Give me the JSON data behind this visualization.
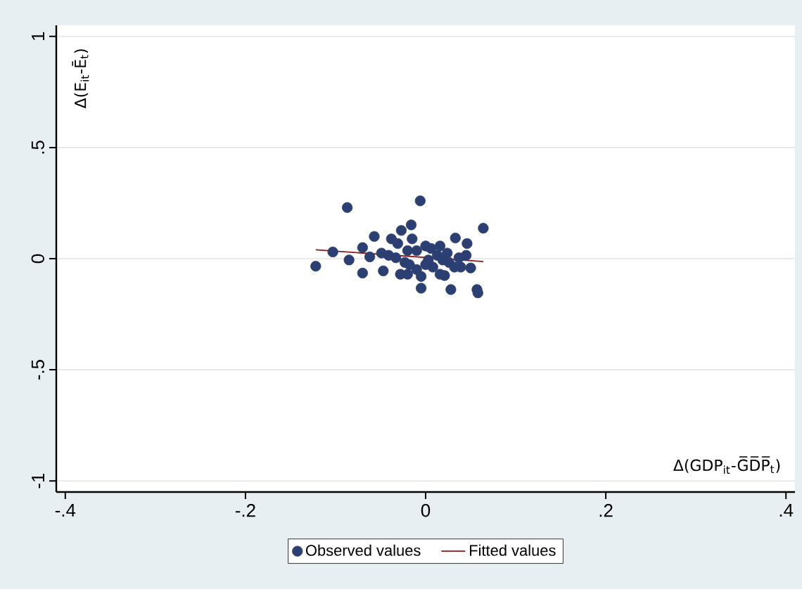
{
  "chart_data": {
    "type": "scatter",
    "xlabel": "Δ(GDP$_{it}$-G̅D̅P̅$_{t}$)",
    "ylabel": "Δ(E$_{it}$-Ē$_{t}$)",
    "xlim": [
      -0.41,
      0.41
    ],
    "ylim": [
      -1.05,
      1.05
    ],
    "xticks": [
      {
        "value": -0.4,
        "label": "-.4"
      },
      {
        "value": -0.2,
        "label": "-.2"
      },
      0,
      {
        "value": 0.2,
        "label": ".2"
      },
      {
        "value": 0.4,
        "label": ".4"
      }
    ],
    "yticks": [
      {
        "value": -1,
        "label": "-1"
      },
      {
        "value": -0.5,
        "label": "-.5"
      },
      0,
      {
        "value": 0.5,
        "label": ".5"
      },
      1
    ],
    "grid": "y",
    "legend": "bottom",
    "series": [
      {
        "name": "Observed values",
        "marker": "circle",
        "color": "#2b3f72",
        "x": [
          -0.087,
          -0.006,
          0.064,
          -0.122,
          -0.103,
          -0.085,
          -0.07,
          -0.07,
          -0.057,
          -0.047,
          -0.038,
          -0.027,
          -0.016,
          -0.005,
          0.028,
          0.057,
          0.058,
          0.033,
          0.046,
          0.05,
          0.021,
          0.016,
          0.0,
          -0.015,
          -0.062,
          -0.049,
          -0.033,
          -0.023,
          -0.028,
          -0.02,
          -0.01,
          -0.005,
          0.003,
          0.008,
          0.013,
          0.024,
          0.026,
          0.037,
          0.039,
          0.045,
          -0.02,
          -0.01,
          -0.031,
          0.006,
          0.016,
          -0.041,
          -0.018,
          0.0,
          0.019,
          0.032
        ],
        "values": [
          0.23,
          0.26,
          0.137,
          -0.034,
          0.03,
          -0.006,
          0.05,
          -0.065,
          0.1,
          -0.055,
          0.089,
          0.127,
          0.152,
          -0.133,
          -0.139,
          -0.139,
          -0.154,
          0.093,
          0.068,
          -0.042,
          -0.076,
          0.057,
          0.057,
          0.089,
          0.008,
          0.025,
          0.004,
          -0.017,
          -0.07,
          -0.07,
          -0.049,
          -0.08,
          -0.006,
          -0.038,
          0.015,
          0.025,
          -0.017,
          0.004,
          -0.038,
          0.015,
          0.036,
          0.036,
          0.068,
          0.046,
          -0.07,
          0.015,
          -0.027,
          -0.027,
          -0.006,
          -0.038
        ]
      },
      {
        "name": "Fitted values",
        "type": "line",
        "marker": "none",
        "color": "#8b1a1a",
        "x": [
          -0.122,
          0.064
        ],
        "values": [
          0.04,
          -0.013
        ]
      }
    ]
  }
}
